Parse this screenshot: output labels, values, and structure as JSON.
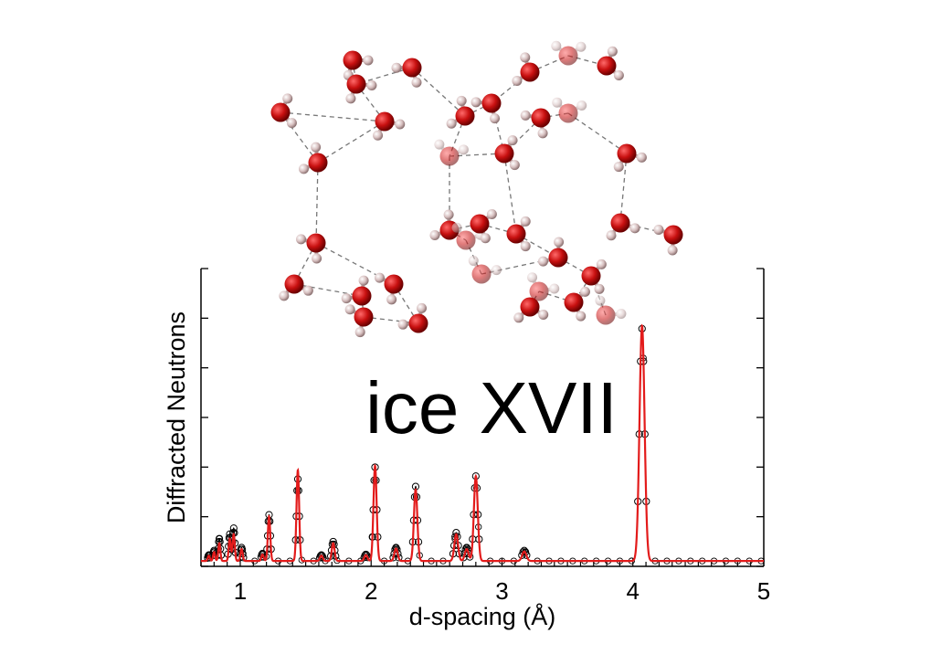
{
  "chart_data": {
    "type": "line",
    "title": "ice XVII",
    "xlabel": "d-spacing (Å)",
    "ylabel": "Diffracted Neutrons",
    "xlim": [
      0.7,
      5.0
    ],
    "ylim": [
      0,
      1.0
    ],
    "x_ticks": [
      1,
      2,
      3,
      4,
      5
    ],
    "grid": false,
    "legend": "none",
    "baseline": 0.018,
    "observed_color": "#000000",
    "fit_color": "#e31b1b",
    "peaks": [
      {
        "d": 0.76,
        "obs": 0.02,
        "fit": 0.018
      },
      {
        "d": 0.8,
        "obs": 0.035,
        "fit": 0.03
      },
      {
        "d": 0.84,
        "obs": 0.075,
        "fit": 0.06
      },
      {
        "d": 0.92,
        "obs": 0.09,
        "fit": 0.075
      },
      {
        "d": 0.95,
        "obs": 0.11,
        "fit": 0.09
      },
      {
        "d": 1.01,
        "obs": 0.045,
        "fit": 0.04
      },
      {
        "d": 1.17,
        "obs": 0.025,
        "fit": 0.022
      },
      {
        "d": 1.22,
        "obs": 0.155,
        "fit": 0.15
      },
      {
        "d": 1.44,
        "obs": 0.275,
        "fit": 0.305
      },
      {
        "d": 1.62,
        "obs": 0.02,
        "fit": 0.018
      },
      {
        "d": 1.71,
        "obs": 0.065,
        "fit": 0.06
      },
      {
        "d": 1.96,
        "obs": 0.022,
        "fit": 0.02
      },
      {
        "d": 2.03,
        "obs": 0.315,
        "fit": 0.32
      },
      {
        "d": 2.19,
        "obs": 0.045,
        "fit": 0.042
      },
      {
        "d": 2.34,
        "obs": 0.25,
        "fit": 0.24
      },
      {
        "d": 2.65,
        "obs": 0.095,
        "fit": 0.09
      },
      {
        "d": 2.73,
        "obs": 0.045,
        "fit": 0.04
      },
      {
        "d": 2.8,
        "obs": 0.285,
        "fit": 0.285
      },
      {
        "d": 3.17,
        "obs": 0.035,
        "fit": 0.032
      },
      {
        "d": 4.07,
        "obs": 0.78,
        "fit": 0.79
      }
    ]
  },
  "molecule_image": {
    "description_icon": "ice-xvii-crystal-structure",
    "oxygen_color": "#cc1111",
    "hydrogen_color": "#d8c4c4"
  }
}
